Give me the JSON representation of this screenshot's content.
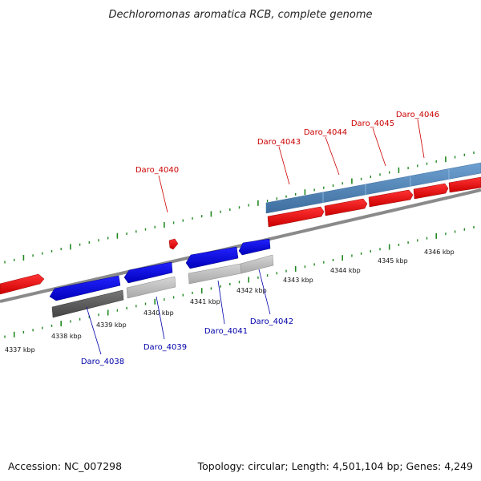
{
  "title": "Dechloromonas aromatica RCB, complete genome",
  "footer": {
    "accession": "Accession: NC_007298",
    "summary": "Topology: circular; Length: 4,501,104 bp; Genes: 4,249"
  },
  "colors": {
    "forward_gene": "#ee1111",
    "reverse_gene": "#1111dd",
    "forward_label": "#cc0000",
    "reverse_label": "#0000aa",
    "tick": "#228822",
    "backbone": "#8a8a8a",
    "cds_light": "#b0b0b0",
    "cds_dark": "#555555",
    "cds_blue": "#4a7fb2"
  },
  "kbp_labels": [
    "4337 kbp",
    "4338 kbp",
    "4339 kbp",
    "4340 kbp",
    "4341 kbp",
    "4342 kbp",
    "4343 kbp",
    "4344 kbp",
    "4345 kbp",
    "4346 kbp"
  ],
  "genes": [
    {
      "label": "Daro_4038",
      "strand": "reverse"
    },
    {
      "label": "Daro_4039",
      "strand": "reverse"
    },
    {
      "label": "Daro_4040",
      "strand": "forward"
    },
    {
      "label": "Daro_4041",
      "strand": "reverse"
    },
    {
      "label": "Daro_4042",
      "strand": "reverse"
    },
    {
      "label": "Daro_4043",
      "strand": "forward"
    },
    {
      "label": "Daro_4044",
      "strand": "forward"
    },
    {
      "label": "Daro_4045",
      "strand": "forward"
    },
    {
      "label": "Daro_4046",
      "strand": "forward"
    }
  ]
}
